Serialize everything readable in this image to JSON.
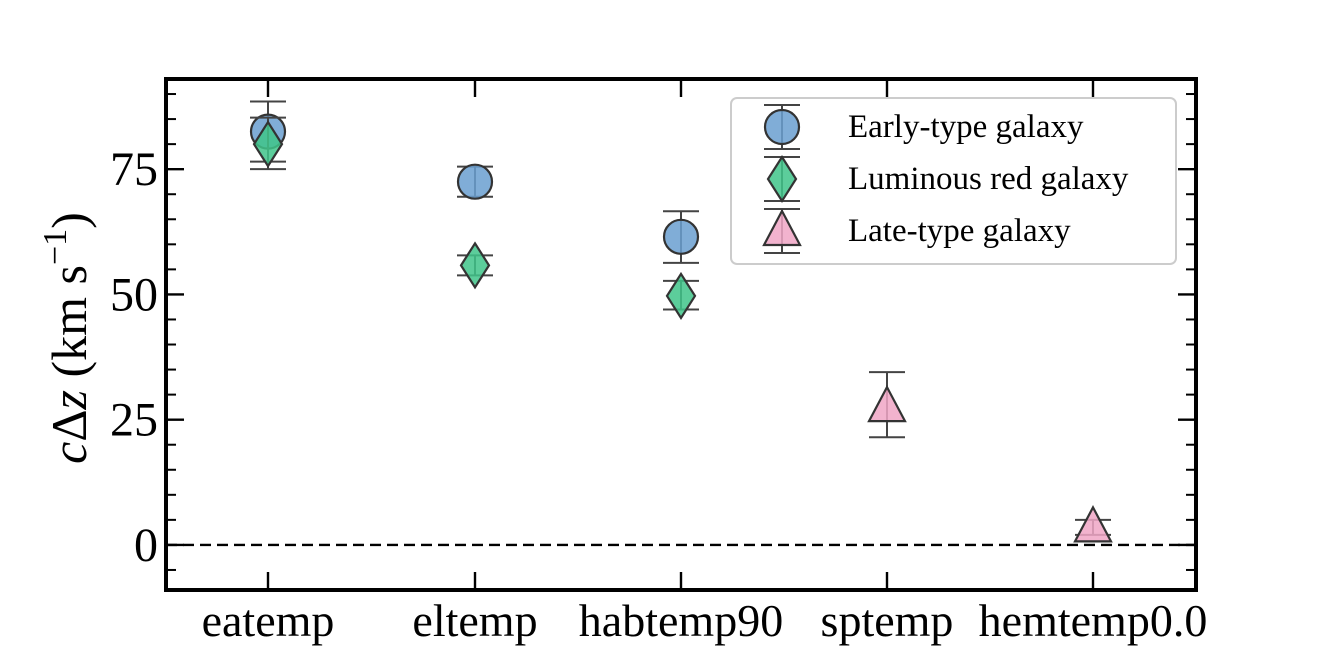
{
  "chart_data": {
    "type": "scatter",
    "categories": [
      "eatemp",
      "eltemp",
      "habtemp90",
      "sptemp",
      "hemtemp0.0"
    ],
    "ylabel": "cΔz (km s⁻¹)",
    "ylabel_parts": {
      "c": "c",
      "delta": "Δ",
      "z": "z",
      "unit_open": " (km s",
      "exp": "−1",
      "close": ")"
    },
    "ylim": [
      -9,
      93
    ],
    "yticks": [
      0,
      25,
      50,
      75
    ],
    "ytick_labels": [
      "0",
      "25",
      "50",
      "75"
    ],
    "reference_line": 0,
    "grid": false,
    "legend_position": "top-right",
    "series": [
      {
        "name": "Early-type galaxy",
        "marker": "circle",
        "color": "#6a9fd0",
        "points": [
          {
            "category": "eatemp",
            "y": 82.5,
            "err_low": 76.5,
            "err_high": 88.5
          },
          {
            "category": "eltemp",
            "y": 72.5,
            "err_low": 69.5,
            "err_high": 75.5
          },
          {
            "category": "habtemp90",
            "y": 61.5,
            "err_low": 56.3,
            "err_high": 66.6
          }
        ]
      },
      {
        "name": "Luminous red galaxy",
        "marker": "diamond",
        "color": "#3fc48a",
        "points": [
          {
            "category": "eatemp",
            "y": 80.0,
            "err_low": 75.0,
            "err_high": 85.3
          },
          {
            "category": "eltemp",
            "y": 55.8,
            "err_low": 53.8,
            "err_high": 57.8
          },
          {
            "category": "habtemp90",
            "y": 49.7,
            "err_low": 47.0,
            "err_high": 52.7
          }
        ]
      },
      {
        "name": "Late-type galaxy",
        "marker": "triangle",
        "color": "#f0a6c6",
        "points": [
          {
            "category": "sptemp",
            "y": 27.5,
            "err_low": 21.5,
            "err_high": 34.5
          },
          {
            "category": "hemtemp0.0",
            "y": 3.5,
            "err_low": 2.0,
            "err_high": 5.0
          }
        ]
      }
    ]
  }
}
